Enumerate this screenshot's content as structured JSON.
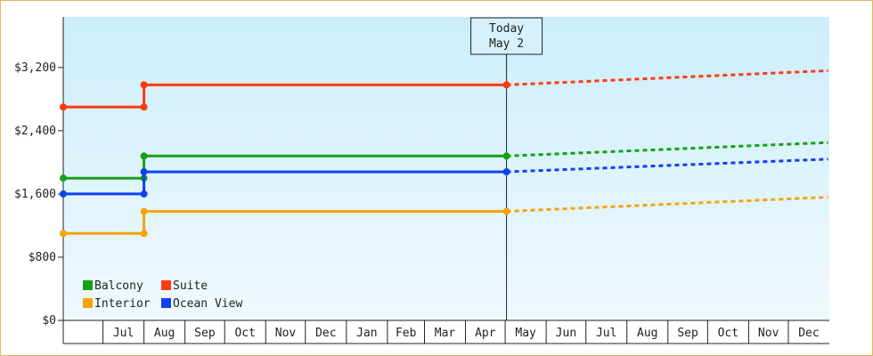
{
  "chart_data": {
    "type": "line",
    "title": "",
    "xlabel": "",
    "ylabel": "",
    "ylim": [
      0,
      3840
    ],
    "y_ticks": [
      {
        "value": 0,
        "label": "$0"
      },
      {
        "value": 800,
        "label": "$800"
      },
      {
        "value": 1600,
        "label": "$1,600"
      },
      {
        "value": 2400,
        "label": "$2,400"
      },
      {
        "value": 3200,
        "label": "$3,200"
      }
    ],
    "x_range": [
      "2025-06-01",
      "2026-12-31"
    ],
    "x_ticks": [
      "Jul",
      "Aug",
      "Sep",
      "Oct",
      "Nov",
      "Dec",
      "Jan",
      "Feb",
      "Mar",
      "Apr",
      "May",
      "Jun",
      "Jul",
      "Aug",
      "Sep",
      "Oct",
      "Nov",
      "Dec"
    ],
    "today": {
      "label_line1": "Today",
      "label_line2": "May 2",
      "date": "2026-05-02"
    },
    "legend_placement": "bottom-left",
    "series": [
      {
        "name": "Balcony",
        "color": "#16a016",
        "points": [
          {
            "date": "2025-06-01",
            "value": 1800
          },
          {
            "date": "2025-08-01",
            "value": 1800
          },
          {
            "date": "2025-08-01",
            "value": 2080
          },
          {
            "date": "2026-05-02",
            "value": 2080
          }
        ],
        "projection": [
          {
            "date": "2026-05-02",
            "value": 2080
          },
          {
            "date": "2026-12-31",
            "value": 2250
          }
        ]
      },
      {
        "name": "Suite",
        "color": "#ff3a10",
        "points": [
          {
            "date": "2025-06-01",
            "value": 2700
          },
          {
            "date": "2025-08-01",
            "value": 2700
          },
          {
            "date": "2025-08-01",
            "value": 2980
          },
          {
            "date": "2026-05-02",
            "value": 2980
          }
        ],
        "projection": [
          {
            "date": "2026-05-02",
            "value": 2980
          },
          {
            "date": "2026-12-31",
            "value": 3160
          }
        ]
      },
      {
        "name": "Interior",
        "color": "#f6a20a",
        "points": [
          {
            "date": "2025-06-01",
            "value": 1100
          },
          {
            "date": "2025-08-01",
            "value": 1100
          },
          {
            "date": "2025-08-01",
            "value": 1380
          },
          {
            "date": "2026-05-02",
            "value": 1380
          }
        ],
        "projection": [
          {
            "date": "2026-05-02",
            "value": 1380
          },
          {
            "date": "2026-12-31",
            "value": 1560
          }
        ]
      },
      {
        "name": "Ocean View",
        "color": "#1040f0",
        "points": [
          {
            "date": "2025-06-01",
            "value": 1600
          },
          {
            "date": "2025-08-01",
            "value": 1600
          },
          {
            "date": "2025-08-01",
            "value": 1880
          },
          {
            "date": "2026-05-02",
            "value": 1880
          }
        ],
        "projection": [
          {
            "date": "2026-05-02",
            "value": 1880
          },
          {
            "date": "2026-12-31",
            "value": 2040
          }
        ]
      }
    ]
  }
}
